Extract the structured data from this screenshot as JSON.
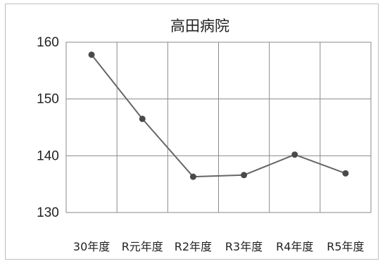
{
  "chart_data": {
    "type": "line",
    "title": "高田病院",
    "xlabel": "",
    "ylabel": "",
    "categories": [
      "30年度",
      "R元年度",
      "R2年度",
      "R3年度",
      "R4年度",
      "R5年度"
    ],
    "series": [
      {
        "values": [
          157.8,
          146.5,
          136.3,
          136.6,
          140.2,
          136.9
        ]
      }
    ],
    "ylim": [
      130,
      160
    ],
    "yticks": [
      "130",
      "140",
      "150",
      "160"
    ],
    "grid": true,
    "legend": "none",
    "colors": {
      "line": "#666666",
      "marker": "#4a4a4a",
      "grid": "#8a8a8a",
      "text": "#222222"
    }
  }
}
